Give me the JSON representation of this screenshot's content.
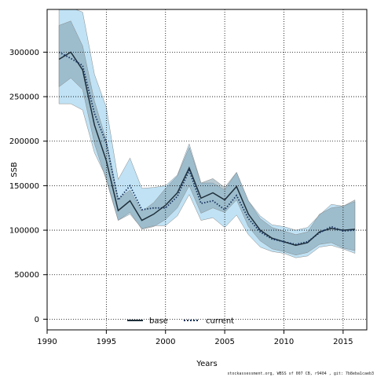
{
  "chart_data": {
    "type": "line",
    "title": "",
    "xlabel": "Years",
    "ylabel": "SSB",
    "xlim": [
      1990,
      2017
    ],
    "ylim": [
      -12000,
      348000
    ],
    "xticks": [
      1990,
      1995,
      2000,
      2005,
      2010,
      2015
    ],
    "yticks": [
      0,
      50000,
      100000,
      150000,
      200000,
      250000,
      300000
    ],
    "grid": true,
    "legend_position": "bottom-center",
    "x": [
      1991,
      1992,
      1993,
      1994,
      1995,
      1996,
      1997,
      1998,
      1999,
      2000,
      2001,
      2002,
      2003,
      2004,
      2005,
      2006,
      2007,
      2008,
      2009,
      2010,
      2011,
      2012,
      2013,
      2014,
      2015,
      2016
    ],
    "series": [
      {
        "name": "base",
        "color": "#1f2f3a",
        "line_style": "solid",
        "values": [
          292000,
          300000,
          280000,
          218000,
          178000,
          122000,
          133000,
          111000,
          118000,
          128000,
          142000,
          170000,
          136000,
          142000,
          134000,
          149000,
          118000,
          100000,
          91000,
          87000,
          83000,
          86000,
          98000,
          102000,
          100000,
          101000
        ],
        "lower": [
          261000,
          271000,
          258000,
          197000,
          156000,
          111000,
          120000,
          101000,
          104000,
          112000,
          125000,
          150000,
          119000,
          125000,
          120000,
          134000,
          104000,
          88000,
          79000,
          76000,
          72000,
          75000,
          84000,
          86000,
          80000,
          77000
        ],
        "upper": [
          330000,
          335000,
          307000,
          245000,
          201000,
          135000,
          145000,
          121000,
          131000,
          147000,
          161000,
          193000,
          153000,
          158000,
          148000,
          165000,
          133000,
          113000,
          103000,
          99000,
          95000,
          98000,
          118000,
          125000,
          127000,
          134000
        ],
        "band_color": "#7f9ead"
      },
      {
        "name": "current",
        "color": "#16315c",
        "line_style": "dotted",
        "values": [
          300000,
          293000,
          285000,
          231000,
          198000,
          134000,
          150000,
          123000,
          125000,
          125000,
          138000,
          167000,
          130000,
          133000,
          123000,
          139000,
          113000,
          98000,
          90000,
          87000,
          84000,
          87000,
          97000,
          104000,
          99000,
          100000
        ],
        "lower": [
          242000,
          242000,
          235000,
          187000,
          159000,
          111000,
          118000,
          102000,
          105000,
          105000,
          116000,
          140000,
          111000,
          114000,
          103000,
          117000,
          95000,
          81000,
          76000,
          74000,
          69000,
          71000,
          81000,
          83000,
          79000,
          74000
        ],
        "upper": [
          358000,
          350000,
          345000,
          275000,
          238000,
          157000,
          181000,
          147000,
          148000,
          150000,
          162000,
          197000,
          153000,
          153000,
          145000,
          165000,
          133000,
          116000,
          106000,
          104000,
          100000,
          103000,
          117000,
          129000,
          127000,
          132000
        ],
        "band_color": "#9ed3ee"
      }
    ]
  },
  "footnote": "stockassessment.org, WBSS sf 007 CB, r9404 , git: 7b8eba1caeb3"
}
